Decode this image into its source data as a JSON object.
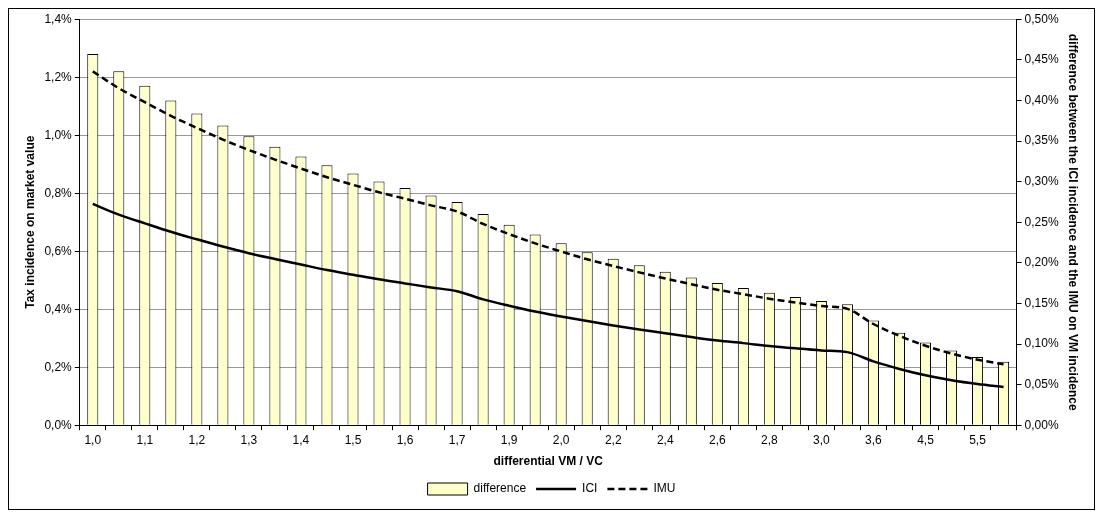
{
  "chart_data": {
    "type": "bar",
    "xlabel": "differential VM / VC",
    "ylabel": "Tax incidence on market value",
    "y2label": "difference between the ICI incidence and the IMU on VM incidence",
    "categories": [
      "1,0",
      null,
      "1,1",
      null,
      "1,2",
      null,
      "1,3",
      null,
      "1,4",
      null,
      "1,5",
      null,
      "1,6",
      null,
      "1,7",
      null,
      "1,9",
      null,
      "2,0",
      null,
      "2,2",
      null,
      "2,4",
      null,
      "2,6",
      null,
      "2,8",
      null,
      "3,0",
      null,
      "3,6",
      null,
      "4,5",
      null,
      "5,5",
      null
    ],
    "series": [
      {
        "name": "difference",
        "type": "bar",
        "axis": "y2",
        "color": "#ffffcc",
        "values": [
          0.457,
          0.436,
          0.418,
          0.4,
          0.384,
          0.369,
          0.356,
          0.343,
          0.331,
          0.32,
          0.31,
          0.3,
          0.292,
          0.283,
          0.275,
          0.26,
          0.247,
          0.235,
          0.224,
          0.213,
          0.205,
          0.197,
          0.189,
          0.182,
          0.175,
          0.169,
          0.163,
          0.158,
          0.153,
          0.149,
          0.129,
          0.114,
          0.102,
          0.092,
          0.084,
          0.078
        ]
      },
      {
        "name": "ICI",
        "type": "line",
        "axis": "y",
        "color": "#000000",
        "line_style": "solid",
        "values": [
          0.763,
          0.726,
          0.696,
          0.667,
          0.641,
          0.616,
          0.593,
          0.573,
          0.554,
          0.535,
          0.519,
          0.503,
          0.489,
          0.475,
          0.462,
          0.434,
          0.412,
          0.392,
          0.375,
          0.359,
          0.344,
          0.33,
          0.317,
          0.304,
          0.292,
          0.283,
          0.273,
          0.265,
          0.258,
          0.252,
          0.22,
          0.194,
          0.172,
          0.155,
          0.142,
          0.132
        ]
      },
      {
        "name": "IMU",
        "type": "line",
        "axis": "y",
        "color": "#000000",
        "line_style": "dashed",
        "values": [
          1.22,
          1.162,
          1.114,
          1.067,
          1.025,
          0.985,
          0.949,
          0.916,
          0.885,
          0.855,
          0.829,
          0.803,
          0.781,
          0.758,
          0.737,
          0.694,
          0.659,
          0.627,
          0.599,
          0.572,
          0.549,
          0.527,
          0.506,
          0.486,
          0.467,
          0.452,
          0.436,
          0.423,
          0.411,
          0.401,
          0.349,
          0.308,
          0.274,
          0.247,
          0.226,
          0.21
        ]
      }
    ],
    "ylim": [
      0,
      1.4
    ],
    "yticks": [
      {
        "value": 0,
        "label": "0,0%"
      },
      {
        "value": 0.2,
        "label": "0,2%"
      },
      {
        "value": 0.4,
        "label": "0,4%"
      },
      {
        "value": 0.6,
        "label": "0,6%"
      },
      {
        "value": 0.8,
        "label": "0,8%"
      },
      {
        "value": 1.0,
        "label": "1,0%"
      },
      {
        "value": 1.2,
        "label": "1,2%"
      },
      {
        "value": 1.4,
        "label": "1,4%"
      }
    ],
    "y2lim": [
      0,
      0.5
    ],
    "y2ticks": [
      {
        "value": 0,
        "label": "0,00%"
      },
      {
        "value": 0.05,
        "label": "0,05%"
      },
      {
        "value": 0.1,
        "label": "0,10%"
      },
      {
        "value": 0.15,
        "label": "0,15%"
      },
      {
        "value": 0.2,
        "label": "0,20%"
      },
      {
        "value": 0.25,
        "label": "0,25%"
      },
      {
        "value": 0.3,
        "label": "0,30%"
      },
      {
        "value": 0.35,
        "label": "0,35%"
      },
      {
        "value": 0.4,
        "label": "0,40%"
      },
      {
        "value": 0.45,
        "label": "0,45%"
      },
      {
        "value": 0.5,
        "label": "0,50%"
      }
    ],
    "grid": "y",
    "legend": "bottom"
  }
}
